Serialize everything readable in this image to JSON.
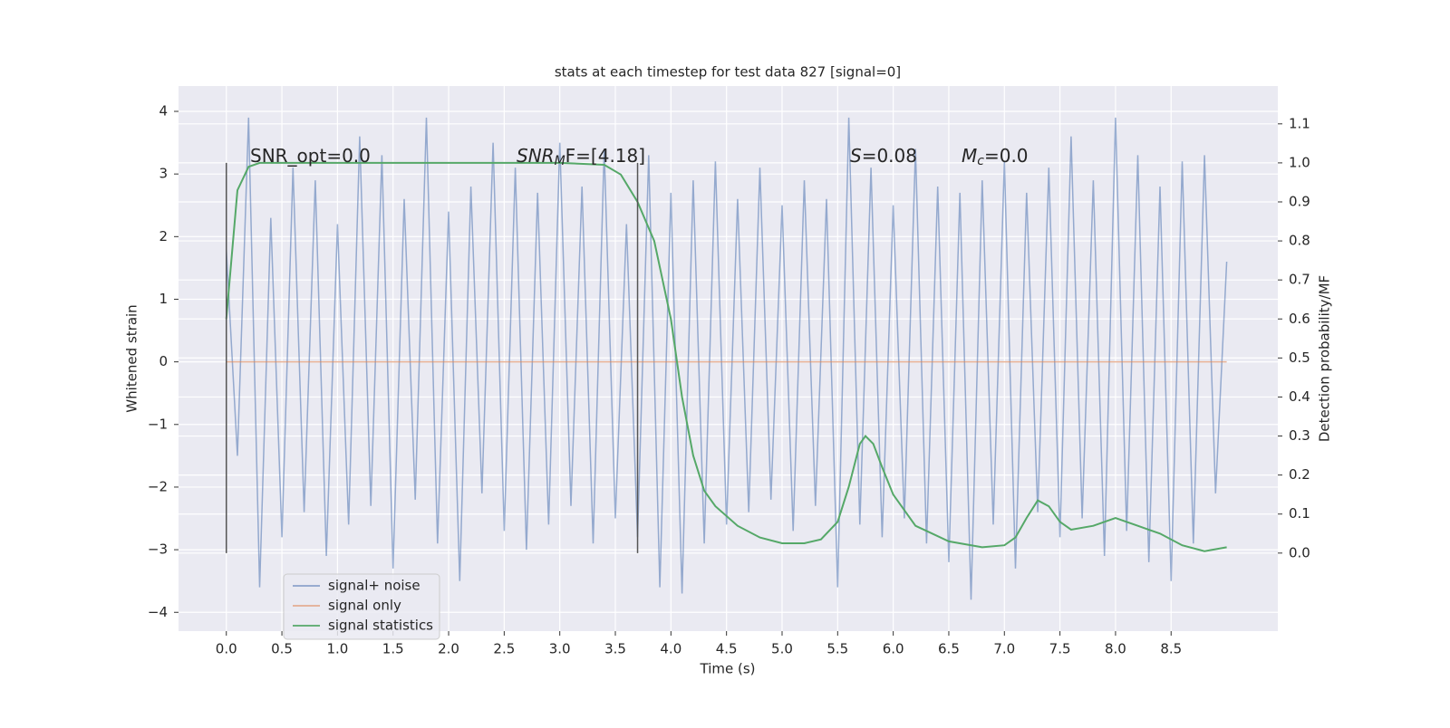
{
  "chart_data": {
    "type": "line",
    "title": "stats at each timestep for test data 827 [signal=0]",
    "x_label": "Time (s)",
    "y_label": "Whitened strain",
    "y2_label": "Detection probability/MF",
    "xlim": [
      -0.43,
      9.46
    ],
    "ylim": [
      -4.3,
      4.405
    ],
    "y2lim": [
      -0.2,
      1.197
    ],
    "xticks": [
      {
        "value": 0,
        "label": "0.0"
      },
      0.5,
      {
        "value": 1,
        "label": "1.0"
      },
      1.5,
      {
        "value": 2,
        "label": "2.0"
      },
      2.5,
      {
        "value": 3,
        "label": "3.0"
      },
      3.5,
      {
        "value": 4,
        "label": "4.0"
      },
      4.5,
      {
        "value": 5,
        "label": "5.0"
      },
      5.5,
      {
        "value": 6,
        "label": "6.0"
      },
      6.5,
      {
        "value": 7,
        "label": "7.0"
      },
      7.5,
      {
        "value": 8,
        "label": "8.0"
      },
      8.5
    ],
    "yticks": [
      {
        "value": -4,
        "label": "−4"
      },
      {
        "value": -3,
        "label": "−3"
      },
      {
        "value": -2,
        "label": "−2"
      },
      {
        "value": -1,
        "label": "−1"
      },
      0,
      1,
      2,
      3,
      4
    ],
    "y2ticks": [
      {
        "value": 0,
        "label": "0.0"
      },
      0.1,
      0.2,
      0.3,
      0.4,
      0.5,
      0.6,
      0.7,
      0.8,
      0.9,
      {
        "value": 1,
        "label": "1.0"
      },
      1.1
    ],
    "grid": true,
    "legend": "lower left",
    "vlines": [
      0,
      3.7
    ],
    "vline_range": [
      0,
      1
    ],
    "vline_color": "#555555",
    "annotations": [
      [
        "SNR_opt=0.0"
      ],
      [
        "SNR",
        "M",
        "F=[4.18]"
      ],
      [
        "S",
        "=0.08"
      ],
      [
        "M",
        "c",
        "=0.0"
      ]
    ],
    "series": [
      {
        "name": "signal+ noise",
        "color": "#4c72b0",
        "x": [
          0,
          0.1,
          0.2,
          0.3,
          0.4,
          0.5,
          0.6,
          0.7,
          0.8,
          0.9,
          1,
          1.1,
          1.2,
          1.3,
          1.4,
          1.5,
          1.6,
          1.7,
          1.8,
          1.9,
          2,
          2.1,
          2.2,
          2.3,
          2.4,
          2.5,
          2.6,
          2.7,
          2.8,
          2.9,
          3,
          3.1,
          3.2,
          3.3,
          3.4,
          3.5,
          3.6,
          3.7,
          3.8,
          3.9,
          4,
          4.1,
          4.2,
          4.3,
          4.4,
          4.5,
          4.6,
          4.7,
          4.8,
          4.9,
          5,
          5.1,
          5.2,
          5.3,
          5.4,
          5.5,
          5.6,
          5.7,
          5.8,
          5.9,
          6,
          6.1,
          6.2,
          6.3,
          6.4,
          6.5,
          6.6,
          6.7,
          6.8,
          6.9,
          7,
          7.1,
          7.2,
          7.3,
          7.4,
          7.5,
          7.6,
          7.7,
          7.8,
          7.9,
          8,
          8.1,
          8.2,
          8.3,
          8.4,
          8.5,
          8.6,
          8.7,
          8.8,
          8.9,
          9
        ],
        "values": [
          1.8,
          -1.5,
          3.9,
          -3.6,
          2.3,
          -2.8,
          3.1,
          -2.4,
          2.9,
          -3.1,
          2.2,
          -2.6,
          3.6,
          -2.3,
          3.3,
          -3.3,
          2.6,
          -2.2,
          3.9,
          -2.9,
          2.4,
          -3.5,
          2.8,
          -2.1,
          3.5,
          -2.7,
          3.1,
          -3.0,
          2.7,
          -2.6,
          3.5,
          -2.3,
          2.8,
          -2.9,
          3.4,
          -2.5,
          2.2,
          -2.8,
          3.3,
          -3.6,
          2.7,
          -3.7,
          2.9,
          -2.9,
          3.2,
          -2.6,
          2.6,
          -2.4,
          3.1,
          -2.2,
          2.5,
          -2.7,
          2.9,
          -2.3,
          2.6,
          -3.6,
          3.9,
          -2.6,
          3.1,
          -2.8,
          2.5,
          -2.5,
          3.4,
          -2.9,
          2.8,
          -3.2,
          2.7,
          -3.8,
          2.9,
          -2.6,
          3.2,
          -3.3,
          2.7,
          -2.4,
          3.1,
          -2.8,
          3.6,
          -2.5,
          2.9,
          -3.1,
          3.9,
          -2.7,
          3.3,
          -3.2,
          2.8,
          -3.5,
          3.2,
          -2.9,
          3.3,
          -2.1,
          1.6
        ]
      },
      {
        "name": "signal only",
        "color": "#dd8452",
        "x": [
          0,
          9
        ],
        "values": [
          0,
          0
        ]
      },
      {
        "name": "signal statistics",
        "color": "#55a868",
        "axis": "y2",
        "x": [
          0,
          0.1,
          0.2,
          0.3,
          1,
          2,
          3,
          3.4,
          3.55,
          3.7,
          3.85,
          4.0,
          4.1,
          4.2,
          4.3,
          4.4,
          4.6,
          4.8,
          5.0,
          5.2,
          5.35,
          5.5,
          5.6,
          5.7,
          5.75,
          5.82,
          5.9,
          6.0,
          6.2,
          6.5,
          6.8,
          7.0,
          7.1,
          7.2,
          7.3,
          7.4,
          7.5,
          7.6,
          7.8,
          8.0,
          8.2,
          8.4,
          8.6,
          8.8,
          9.0
        ],
        "values": [
          0.6,
          0.93,
          0.99,
          1.0,
          1.0,
          1.0,
          1.0,
          0.995,
          0.97,
          0.9,
          0.8,
          0.6,
          0.4,
          0.25,
          0.16,
          0.12,
          0.07,
          0.04,
          0.025,
          0.025,
          0.035,
          0.08,
          0.17,
          0.28,
          0.3,
          0.28,
          0.22,
          0.15,
          0.07,
          0.03,
          0.015,
          0.02,
          0.04,
          0.09,
          0.135,
          0.12,
          0.08,
          0.06,
          0.07,
          0.09,
          0.07,
          0.05,
          0.02,
          0.005,
          0.015
        ]
      }
    ]
  }
}
